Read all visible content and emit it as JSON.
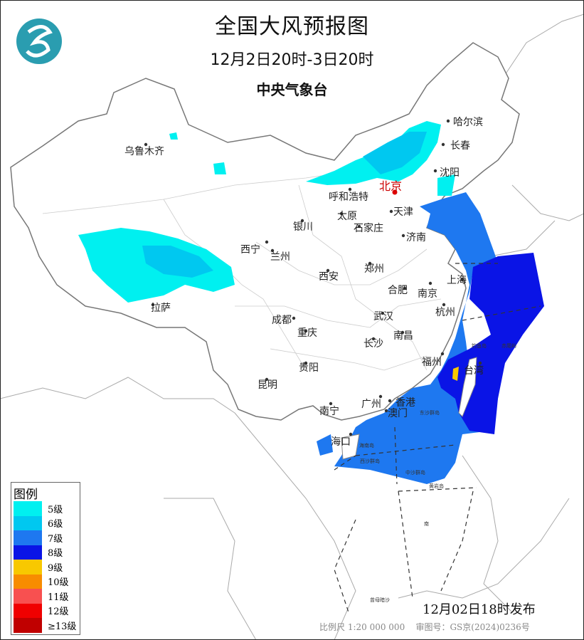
{
  "header": {
    "title": "全国大风预报图",
    "time_range": "12月2日20时-3日20时",
    "agency": "中央气象台"
  },
  "logo": {
    "icon": "cma-logo-icon",
    "color": "#2a9db0"
  },
  "legend": {
    "title": "图例",
    "items": [
      {
        "label": "5级",
        "color": "#00f0f0"
      },
      {
        "label": "6级",
        "color": "#00c8f0"
      },
      {
        "label": "7级",
        "color": "#1e78f0"
      },
      {
        "label": "8级",
        "color": "#0a14e6"
      },
      {
        "label": "9级",
        "color": "#f8c800"
      },
      {
        "label": "10级",
        "color": "#f88c00"
      },
      {
        "label": "11级",
        "color": "#f85050"
      },
      {
        "label": "12级",
        "color": "#f00000"
      },
      {
        "label": "≥13级",
        "color": "#c00000"
      }
    ]
  },
  "cities": [
    {
      "name": "乌鲁木齐"
    },
    {
      "name": "哈尔滨"
    },
    {
      "name": "长春"
    },
    {
      "name": "沈阳"
    },
    {
      "name": "呼和浩特"
    },
    {
      "name": "北京"
    },
    {
      "name": "天津"
    },
    {
      "name": "太原"
    },
    {
      "name": "石家庄"
    },
    {
      "name": "银川"
    },
    {
      "name": "济南"
    },
    {
      "name": "西宁"
    },
    {
      "name": "兰州"
    },
    {
      "name": "郑州"
    },
    {
      "name": "西安"
    },
    {
      "name": "合肥"
    },
    {
      "name": "南京"
    },
    {
      "name": "上海"
    },
    {
      "name": "杭州"
    },
    {
      "name": "拉萨"
    },
    {
      "name": "成都"
    },
    {
      "name": "武汉"
    },
    {
      "name": "重庆"
    },
    {
      "name": "南昌"
    },
    {
      "name": "长沙"
    },
    {
      "name": "贵阳"
    },
    {
      "name": "福州"
    },
    {
      "name": "台湾"
    },
    {
      "name": "昆明"
    },
    {
      "name": "南宁"
    },
    {
      "name": "广州"
    },
    {
      "name": "香港"
    },
    {
      "name": "澳门"
    },
    {
      "name": "海口"
    }
  ],
  "map_labels": [
    "东沙群岛",
    "海南岛",
    "西沙群岛",
    "中沙群岛",
    "黄岩岛",
    "钓鱼岛",
    "赤尾屿",
    "曾母暗沙",
    "南"
  ],
  "footer": {
    "issued": "12月02日18时发布",
    "scale": "比例尺 1:20 000 000",
    "approval": "审图号：GS京(2024)0236号"
  }
}
